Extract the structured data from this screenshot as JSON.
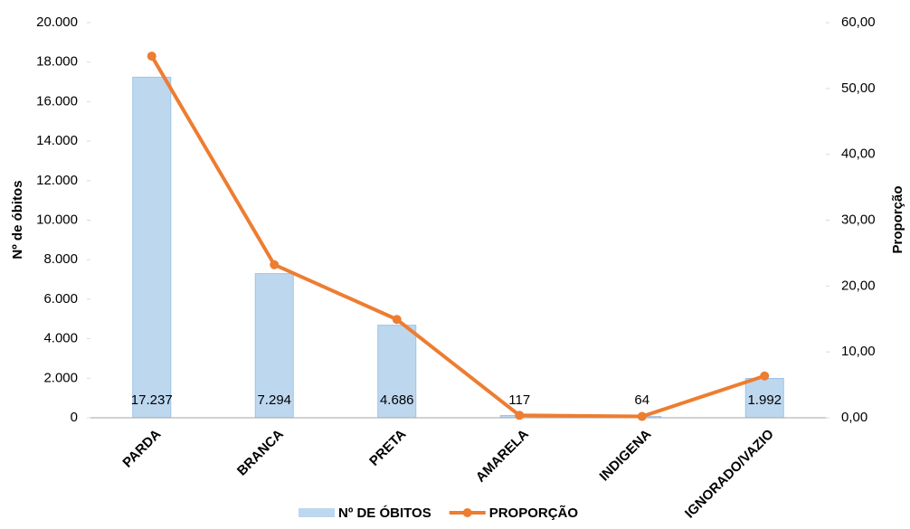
{
  "chart_data": {
    "type": "bar",
    "categories": [
      "PARDA",
      "BRANCA",
      "PRETA",
      "AMARELA",
      "INDIGENA",
      "IGNORADO/VAZIO"
    ],
    "series": [
      {
        "name": "Nº DE ÓBITOS",
        "type": "bar",
        "color": "#bdd7ee",
        "values": [
          17237,
          7294,
          4686,
          117,
          64,
          1992
        ],
        "value_labels": [
          "17.237",
          "7.294",
          "4.686",
          "117",
          "64",
          "1.992"
        ]
      },
      {
        "name": "PROPORÇÃO",
        "type": "line",
        "axis": "y2",
        "color": "#ed7d31",
        "values": [
          54.91,
          23.24,
          14.93,
          0.37,
          0.2,
          6.35
        ]
      }
    ],
    "y_label": "Nº de óbitos",
    "y2_label": "Proporção",
    "ylim": [
      0,
      20000
    ],
    "yticks": [
      0,
      {
        "value": 2000,
        "label": "2.000"
      },
      {
        "value": 4000,
        "label": "4.000"
      },
      {
        "value": 6000,
        "label": "6.000"
      },
      {
        "value": 8000,
        "label": "8.000"
      },
      {
        "value": 10000,
        "label": "10.000"
      },
      {
        "value": 12000,
        "label": "12.000"
      },
      {
        "value": 14000,
        "label": "14.000"
      },
      {
        "value": 16000,
        "label": "16.000"
      },
      {
        "value": 18000,
        "label": "18.000"
      },
      {
        "value": 20000,
        "label": "20.000"
      }
    ],
    "y2lim": [
      0,
      60
    ],
    "y2ticks": [
      {
        "value": 0,
        "label": "0,00"
      },
      {
        "value": 10,
        "label": "10,00"
      },
      {
        "value": 20,
        "label": "20,00"
      },
      {
        "value": 30,
        "label": "30,00"
      },
      {
        "value": 40,
        "label": "40,00"
      },
      {
        "value": 50,
        "label": "50,00"
      },
      {
        "value": 60,
        "label": "60,00"
      }
    ],
    "grid": false
  }
}
